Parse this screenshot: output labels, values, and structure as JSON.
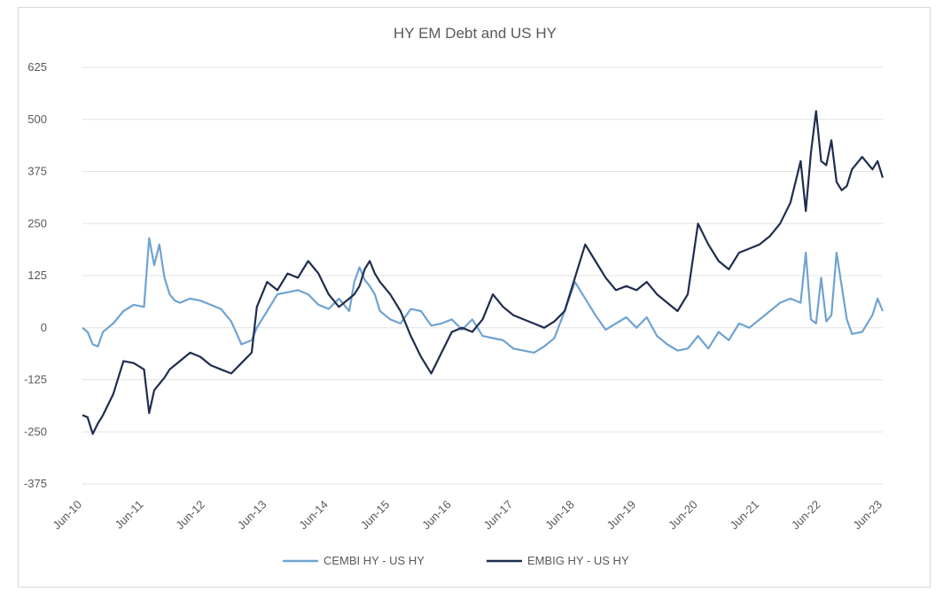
{
  "chart_data": {
    "type": "line",
    "title": "HY EM Debt and US HY",
    "xlabel": "",
    "ylabel": "",
    "ylim": [
      -375,
      625
    ],
    "yticks": [
      625,
      500,
      375,
      250,
      125,
      0,
      -125,
      -250,
      -375
    ],
    "ytick_labels": [
      "625",
      "500",
      "375",
      "250",
      "125",
      "0",
      "-125",
      "-250",
      "-375"
    ],
    "xticks": [
      "Jun-10",
      "Jun-11",
      "Jun-12",
      "Jun-13",
      "Jun-14",
      "Jun-15",
      "Jun-16",
      "Jun-17",
      "Jun-18",
      "Jun-19",
      "Jun-20",
      "Jun-21",
      "Jun-22",
      "Jun-23"
    ],
    "grid": true,
    "legend_position": "bottom",
    "colors": {
      "cembi": "#6fa3d2",
      "embig": "#1f2d4e",
      "grid": "#e3e3e3"
    },
    "series": [
      {
        "name": "CEMBI HY - US HY",
        "color": "#6fa3d2",
        "x": [
          "2010-06",
          "2010-07",
          "2010-08",
          "2010-09",
          "2010-10",
          "2010-12",
          "2011-02",
          "2011-04",
          "2011-06",
          "2011-07",
          "2011-08",
          "2011-09",
          "2011-10",
          "2011-11",
          "2011-12",
          "2012-01",
          "2012-03",
          "2012-05",
          "2012-07",
          "2012-09",
          "2012-11",
          "2013-01",
          "2013-03",
          "2013-04",
          "2013-06",
          "2013-08",
          "2013-10",
          "2013-12",
          "2014-02",
          "2014-04",
          "2014-06",
          "2014-08",
          "2014-10",
          "2014-11",
          "2014-12",
          "2015-01",
          "2015-02",
          "2015-03",
          "2015-04",
          "2015-06",
          "2015-08",
          "2015-10",
          "2015-12",
          "2016-02",
          "2016-04",
          "2016-06",
          "2016-08",
          "2016-10",
          "2016-12",
          "2017-02",
          "2017-04",
          "2017-06",
          "2017-08",
          "2017-10",
          "2017-12",
          "2018-02",
          "2018-04",
          "2018-06",
          "2018-08",
          "2018-10",
          "2018-12",
          "2019-02",
          "2019-04",
          "2019-06",
          "2019-08",
          "2019-10",
          "2019-12",
          "2020-02",
          "2020-04",
          "2020-06",
          "2020-08",
          "2020-10",
          "2020-12",
          "2021-02",
          "2021-04",
          "2021-06",
          "2021-08",
          "2021-10",
          "2021-12",
          "2022-02",
          "2022-03",
          "2022-04",
          "2022-05",
          "2022-06",
          "2022-07",
          "2022-08",
          "2022-09",
          "2022-10",
          "2022-11",
          "2022-12",
          "2023-02",
          "2023-04",
          "2023-05",
          "2023-06"
        ],
        "values": [
          0,
          -10,
          -40,
          -45,
          -10,
          10,
          40,
          55,
          50,
          215,
          150,
          200,
          120,
          80,
          65,
          60,
          70,
          65,
          55,
          45,
          15,
          -40,
          -30,
          0,
          40,
          80,
          85,
          90,
          80,
          55,
          45,
          70,
          40,
          110,
          145,
          115,
          100,
          80,
          40,
          20,
          10,
          45,
          40,
          5,
          10,
          20,
          -5,
          20,
          -20,
          -25,
          -30,
          -50,
          -55,
          -60,
          -45,
          -25,
          40,
          110,
          70,
          30,
          -5,
          10,
          25,
          0,
          25,
          -20,
          -40,
          -55,
          -50,
          -20,
          -50,
          -10,
          -30,
          10,
          0,
          20,
          40,
          60,
          70,
          60,
          180,
          20,
          10,
          120,
          15,
          30,
          180,
          100,
          20,
          -15,
          -10,
          30,
          70,
          40
        ]
      },
      {
        "name": "EMBIG HY - US HY",
        "color": "#1f2d4e",
        "x": [
          "2010-06",
          "2010-07",
          "2010-08",
          "2010-09",
          "2010-10",
          "2010-12",
          "2011-02",
          "2011-04",
          "2011-06",
          "2011-07",
          "2011-08",
          "2011-09",
          "2011-10",
          "2011-11",
          "2011-12",
          "2012-01",
          "2012-03",
          "2012-05",
          "2012-07",
          "2012-09",
          "2012-11",
          "2013-01",
          "2013-03",
          "2013-04",
          "2013-06",
          "2013-08",
          "2013-10",
          "2013-12",
          "2014-02",
          "2014-04",
          "2014-06",
          "2014-08",
          "2014-10",
          "2014-11",
          "2014-12",
          "2015-01",
          "2015-02",
          "2015-03",
          "2015-04",
          "2015-06",
          "2015-08",
          "2015-10",
          "2015-12",
          "2016-02",
          "2016-04",
          "2016-06",
          "2016-08",
          "2016-10",
          "2016-12",
          "2017-02",
          "2017-04",
          "2017-06",
          "2017-08",
          "2017-10",
          "2017-12",
          "2018-02",
          "2018-04",
          "2018-06",
          "2018-08",
          "2018-10",
          "2018-12",
          "2019-02",
          "2019-04",
          "2019-06",
          "2019-08",
          "2019-10",
          "2019-12",
          "2020-02",
          "2020-04",
          "2020-06",
          "2020-08",
          "2020-10",
          "2020-12",
          "2021-02",
          "2021-04",
          "2021-06",
          "2021-08",
          "2021-10",
          "2021-12",
          "2022-02",
          "2022-03",
          "2022-04",
          "2022-05",
          "2022-06",
          "2022-07",
          "2022-08",
          "2022-09",
          "2022-10",
          "2022-11",
          "2022-12",
          "2023-02",
          "2023-04",
          "2023-05",
          "2023-06"
        ],
        "values": [
          -210,
          -215,
          -255,
          -230,
          -210,
          -160,
          -80,
          -85,
          -100,
          -205,
          -150,
          -135,
          -120,
          -100,
          -90,
          -80,
          -60,
          -70,
          -90,
          -100,
          -110,
          -85,
          -60,
          50,
          110,
          90,
          130,
          120,
          160,
          130,
          80,
          50,
          70,
          80,
          100,
          140,
          160,
          130,
          110,
          80,
          40,
          -20,
          -70,
          -110,
          -60,
          -10,
          0,
          -10,
          20,
          80,
          50,
          30,
          20,
          10,
          0,
          15,
          40,
          120,
          200,
          160,
          120,
          90,
          100,
          90,
          110,
          80,
          60,
          40,
          80,
          250,
          200,
          160,
          140,
          180,
          190,
          200,
          220,
          250,
          300,
          400,
          280,
          420,
          520,
          400,
          390,
          450,
          350,
          330,
          340,
          380,
          410,
          380,
          400,
          360
        ]
      }
    ]
  }
}
